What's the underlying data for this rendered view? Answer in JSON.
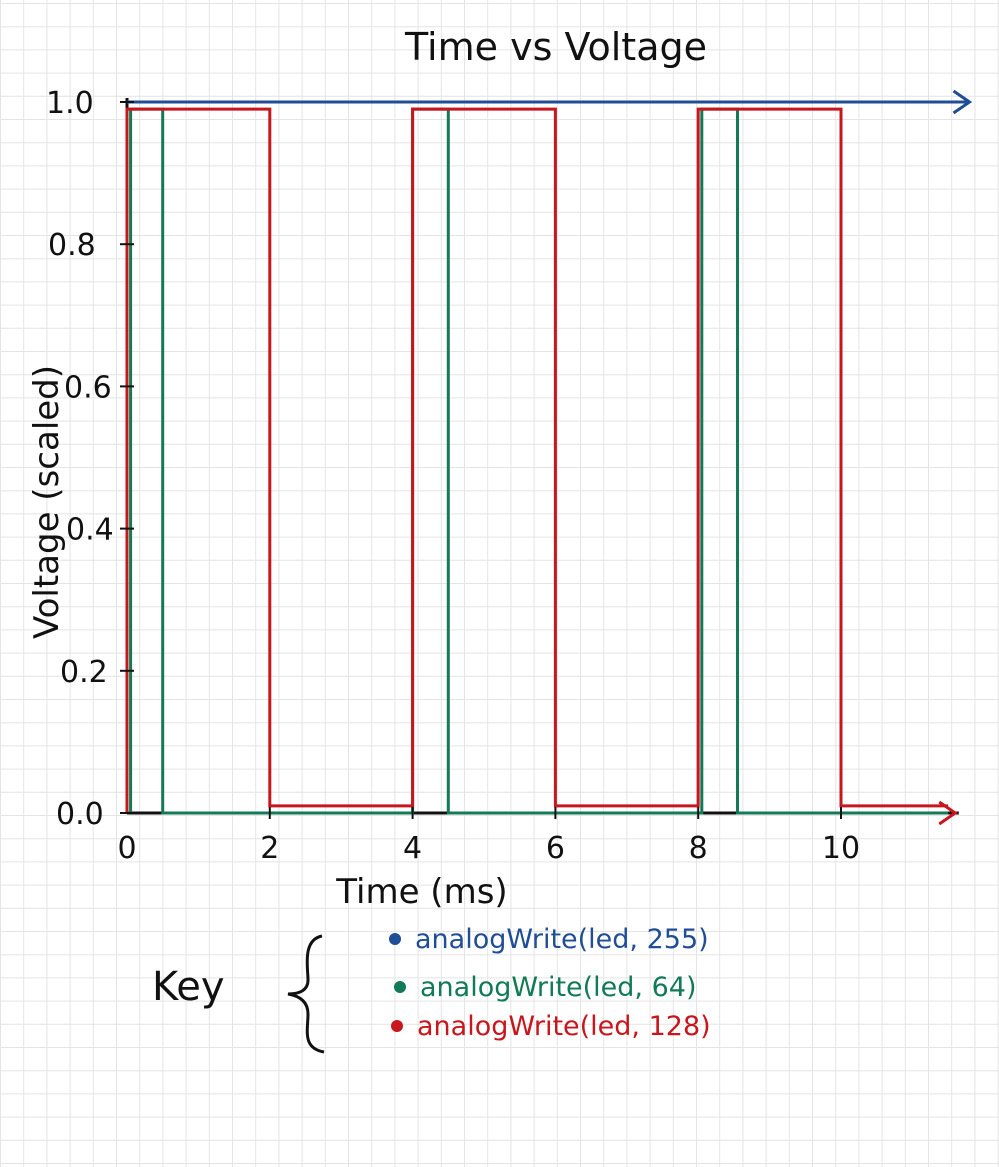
{
  "chart_data": {
    "type": "line",
    "title": "Time vs Voltage",
    "xlabel": "Time (ms)",
    "ylabel": "Voltage (scaled)",
    "xlim": [
      0,
      11.5
    ],
    "ylim": [
      0,
      1.0
    ],
    "x_ticks": [
      "0",
      "2",
      "4",
      "6",
      "8",
      "10"
    ],
    "y_ticks": [
      "0.0",
      "0.2",
      "0.4",
      "0.6",
      "0.8",
      "1.0"
    ],
    "grid": true,
    "key_label": "Key",
    "series": [
      {
        "name": "analogWrite(led, 255)",
        "color": "#1f4e96",
        "x": [
          0,
          11.8
        ],
        "y": [
          1.0,
          1.0
        ]
      },
      {
        "name": "analogWrite(led, 64)",
        "color": "#127a55",
        "x": [
          0.05,
          0.05,
          0.5,
          0.5,
          4.0,
          4.0,
          4.5,
          4.5,
          8.05,
          8.05,
          8.55,
          8.55,
          11.5
        ],
        "y": [
          0.0,
          0.99,
          0.99,
          0.0,
          0.0,
          0.99,
          0.99,
          0.0,
          0.0,
          0.99,
          0.99,
          0.0,
          0.0
        ]
      },
      {
        "name": "analogWrite(led, 128)",
        "color": "#c8161d",
        "x": [
          0.0,
          0.0,
          2.0,
          2.0,
          4.0,
          4.0,
          6.0,
          6.0,
          8.0,
          8.0,
          10.0,
          10.0,
          11.5
        ],
        "y": [
          0.0,
          0.99,
          0.99,
          0.01,
          0.01,
          0.99,
          0.99,
          0.01,
          0.01,
          0.99,
          0.99,
          0.01,
          0.01
        ]
      }
    ]
  }
}
